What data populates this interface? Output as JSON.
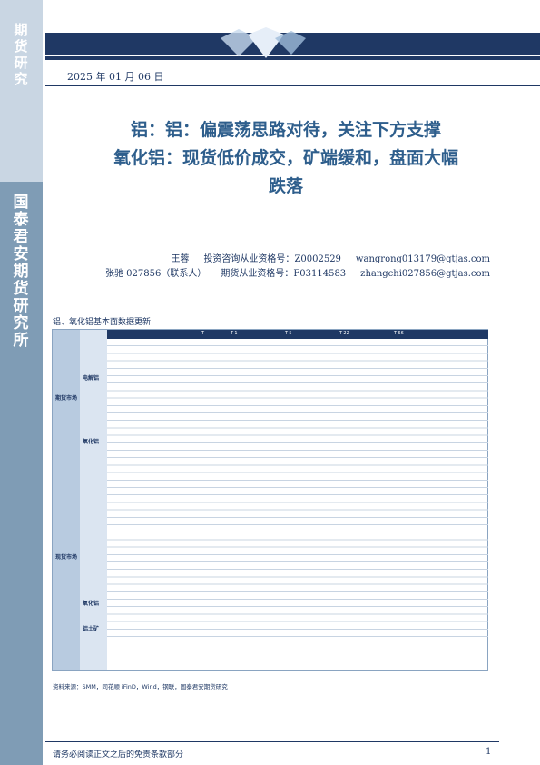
{
  "sidebar": {
    "top_label": "期货研究",
    "bottom_label": "国泰君安期货研究所"
  },
  "report": {
    "date": "2025 年 01 月 06 日",
    "title_line1": "铝：铝：偏震荡思路对待，关注下方支撑",
    "title_line2": "氧化铝：现货低价成交，矿端缓和，盘面大幅",
    "title_line3": "跌落"
  },
  "authors": [
    {
      "name": "王蓉",
      "cert_label": "投资咨询从业资格号：",
      "cert_no": "Z0002529",
      "email": "wangrong013179@gtjas.com"
    },
    {
      "name": "张驰 027856（联系人）",
      "cert_label": "期货从业资格号：",
      "cert_no": "F03114583",
      "email": "zhangchi027856@gtjas.com"
    }
  ],
  "section": {
    "title": "铝、氧化铝基本面数据更新"
  },
  "table": {
    "headers": [
      "T",
      "T-1",
      "T-5",
      "T-22",
      "T-66"
    ],
    "groups": [
      {
        "label": "期货市场"
      },
      {
        "label": "现货市场"
      },
      {
        "label": "氧化铝"
      },
      {
        "label": "铝土矿"
      },
      {
        "label": "电解铝"
      },
      {
        "label": "氧化铝"
      }
    ]
  },
  "source": "资料来源：SMM，同花顺 iFinD，Wind，钢联，国泰君安期货研究",
  "footer": {
    "disclaimer": "请务必阅读正文之后的免责条款部分",
    "page": "1"
  },
  "colors": {
    "navy": "#1f3864",
    "title_blue": "#2e5e8c",
    "sidebar": "#7f9cb5"
  }
}
